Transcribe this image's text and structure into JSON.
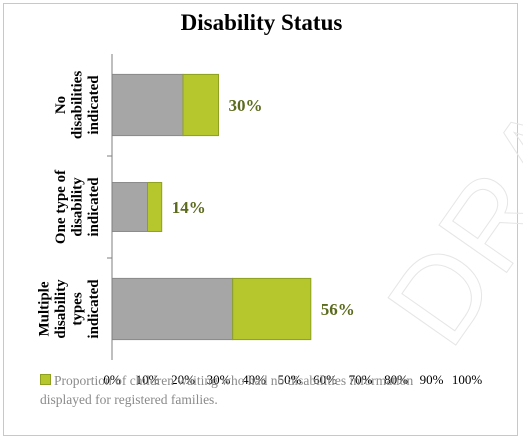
{
  "chart_data": {
    "type": "bar",
    "orientation": "horizontal",
    "stacked": true,
    "title": "Disability Status",
    "categories": [
      "No disabilities indicated",
      "One type of disability indicated",
      "Multiple disability types indicated"
    ],
    "category_lines": [
      [
        "No",
        "disabilities",
        "indicated"
      ],
      [
        "One type of",
        "disability",
        "indicated"
      ],
      [
        "Multiple",
        "disability",
        "types",
        "indicated"
      ]
    ],
    "series": [
      {
        "values": [
          20,
          10,
          34
        ],
        "color": "#a6a6a6"
      },
      {
        "name": "Proportion of children waiting who had no disabilities information displayed for registered families.",
        "values": [
          10,
          4,
          22
        ],
        "color": "#b5c72d"
      }
    ],
    "data_labels": [
      "30%",
      "14%",
      "56%"
    ],
    "xlim": [
      0,
      100
    ],
    "x_ticks": [
      "0%",
      "10%",
      "20%",
      "30%",
      "40%",
      "50%",
      "60%",
      "70%",
      "80%",
      "90%",
      "100%"
    ],
    "grid": false,
    "legend_position": "bottom",
    "label_color": "#5b6b1e"
  },
  "legend": {
    "line1": "Proportion of children waiting who had no disabilities information",
    "line2": "displayed for registered families."
  }
}
